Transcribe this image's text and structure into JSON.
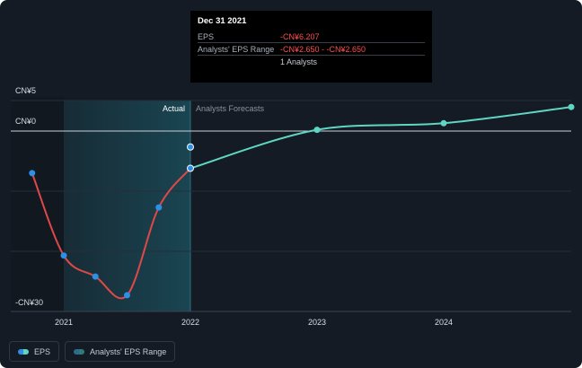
{
  "tooltip": {
    "date": "Dec 31 2021",
    "rows": [
      {
        "key": "EPS",
        "value": "-CN¥6.207"
      },
      {
        "key": "Analysts' EPS Range",
        "value": "-CN¥2.650 - -CN¥2.650"
      },
      {
        "key": "",
        "value": "1 Analysts"
      }
    ]
  },
  "labels": {
    "actual": "Actual",
    "forecast": "Analysts Forecasts"
  },
  "legend": {
    "eps_label": "EPS",
    "range_label": "Analysts' EPS Range"
  },
  "colors": {
    "background": "#151b24",
    "actual_line": "#e04848",
    "forecast_line": "#5fd6c3",
    "actual_point": "#2d8fe6",
    "forecast_point": "#5fd6c3",
    "highlight": "#1a4a57",
    "range_swatch": "#2e7a78"
  },
  "chart_data": {
    "type": "line",
    "y_ticks": [
      {
        "value": 5,
        "label": "CN¥5"
      },
      {
        "value": 0,
        "label": "CN¥0"
      },
      {
        "value": -30,
        "label": "-CN¥30"
      }
    ],
    "x_ticks": [
      {
        "value": 2021,
        "label": "2021"
      },
      {
        "value": 2022,
        "label": "2022"
      },
      {
        "value": 2023,
        "label": "2023"
      },
      {
        "value": 2024,
        "label": "2024"
      }
    ],
    "ylim": [
      -30,
      5
    ],
    "xlim": [
      2020.6,
      2025.0
    ],
    "grid": true,
    "highlight_range": [
      2021.0,
      2022.0
    ],
    "series": [
      {
        "name": "EPS",
        "kind": "actual",
        "x": [
          2020.75,
          2021.0,
          2021.25,
          2021.5,
          2021.75,
          2022.0
        ],
        "y": [
          -7.0,
          -20.7,
          -24.2,
          -27.3,
          -12.7,
          -6.2
        ]
      },
      {
        "name": "Analysts Forecasts",
        "kind": "forecast",
        "x": [
          2022.0,
          2023.0,
          2024.0,
          2025.0
        ],
        "y": [
          -6.2,
          0.2,
          1.3,
          4.0
        ]
      },
      {
        "name": "Analysts' EPS Range",
        "kind": "range",
        "x": [
          2022.0
        ],
        "y": [
          -2.65
        ]
      }
    ]
  }
}
